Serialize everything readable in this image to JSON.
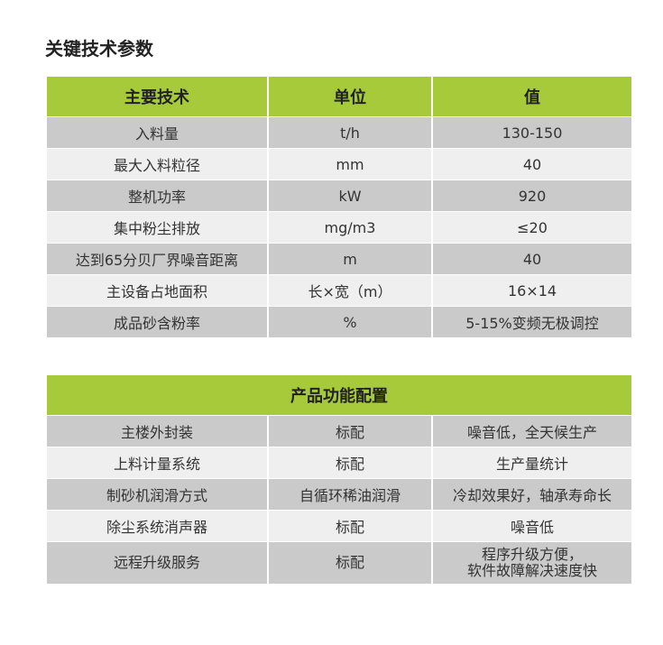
{
  "title": "关键技术参数",
  "table1": {
    "headers": [
      "主要技术",
      "单位",
      "值"
    ],
    "rows": [
      [
        "入料量",
        "t/h",
        "130-150"
      ],
      [
        "最大入料粒径",
        "mm",
        "40"
      ],
      [
        "整机功率",
        "kW",
        "920"
      ],
      [
        "集中粉尘排放",
        "mg/m3",
        "≤20"
      ],
      [
        "达到65分贝厂界噪音距离",
        "m",
        "40"
      ],
      [
        "主设备占地面积",
        "长×宽（m）",
        "16×14"
      ],
      [
        "成品砂含粉率",
        "%",
        "5-15%变频无极调控"
      ]
    ]
  },
  "table2": {
    "header": "产品功能配置",
    "rows": [
      [
        "主楼外封装",
        "标配",
        "噪音低，全天候生产"
      ],
      [
        "上料计量系统",
        "标配",
        "生产量统计"
      ],
      [
        "制砂机润滑方式",
        "自循环稀油润滑",
        "冷却效果好，轴承寿命长"
      ],
      [
        "除尘系统消声器",
        "标配",
        "噪音低"
      ],
      [
        "远程升级服务",
        "标配",
        "程序升级方便，",
        "软件故障解决速度快"
      ]
    ]
  },
  "colors": {
    "header": "#a7ca3a",
    "row_dark": "#cacaca",
    "row_light": "#efefef"
  }
}
